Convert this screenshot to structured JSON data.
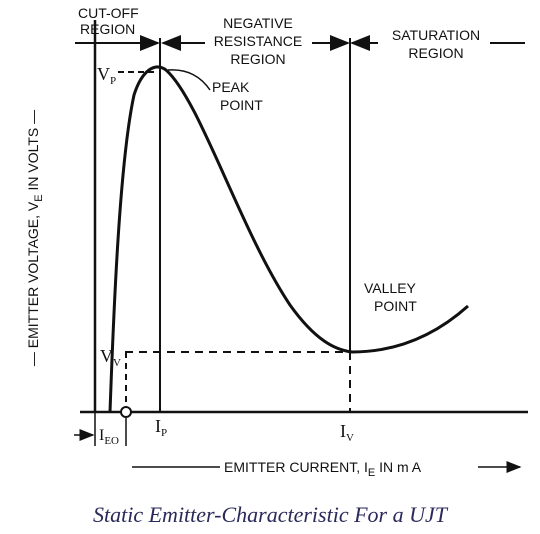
{
  "regions": {
    "cutoff": [
      "CUT-OFF",
      "REGION"
    ],
    "negative": [
      "NEGATIVE",
      "RESISTANCE",
      "REGION"
    ],
    "saturation": [
      "SATURATION",
      "REGION"
    ]
  },
  "points": {
    "peak": [
      "PEAK",
      "POINT"
    ],
    "valley": [
      "VALLEY",
      "POINT"
    ]
  },
  "axes": {
    "y_label_main": "— EMITTER VOLTAGE, V",
    "y_label_sub": "E",
    "y_label_tail": " IN VOLTS —",
    "x_label_main": "EMITTER CURRENT, I",
    "x_label_sub": "E",
    "x_label_tail": " IN m A"
  },
  "symbols": {
    "vp": "V",
    "vp_sub": "P",
    "vv": "V",
    "vv_sub": "V",
    "ip": "I",
    "ip_sub": "P",
    "iv": "I",
    "iv_sub": "V",
    "ieo": "I",
    "ieo_sub": "EO"
  },
  "caption": "Static Emitter-Characteristic For a UJT"
}
